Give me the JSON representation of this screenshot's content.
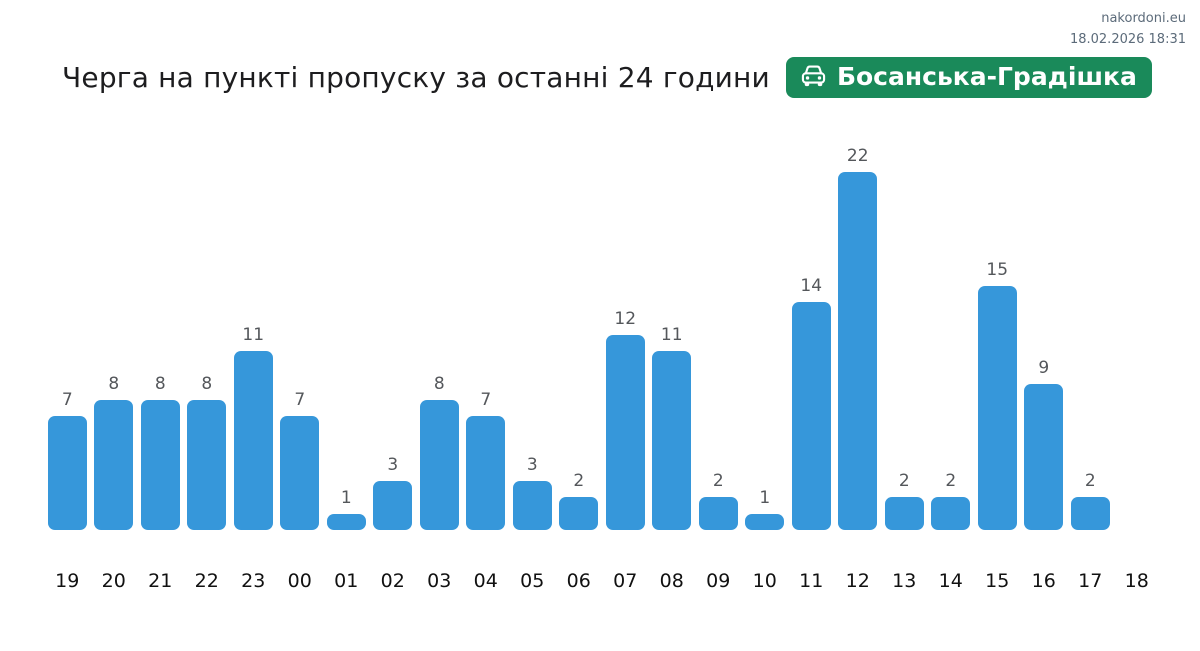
{
  "header": {
    "site": "nakordoni.eu",
    "timestamp": "18.02.2026 18:31"
  },
  "title": {
    "text": "Черга на пункті пропуску за останні 24 години"
  },
  "badge": {
    "label": "Босанська-Градішка",
    "icon": "car-front-icon",
    "bg_color": "#1a8a5a",
    "text_color": "#ffffff"
  },
  "chart_data": {
    "type": "bar",
    "title": "Черга на пункті пропуску за останні 24 години",
    "categories": [
      "19",
      "20",
      "21",
      "22",
      "23",
      "00",
      "01",
      "02",
      "03",
      "04",
      "05",
      "06",
      "07",
      "08",
      "09",
      "10",
      "11",
      "12",
      "13",
      "14",
      "15",
      "16",
      "17",
      "18"
    ],
    "values": [
      7,
      8,
      8,
      8,
      11,
      7,
      1,
      3,
      8,
      7,
      3,
      2,
      12,
      11,
      2,
      1,
      14,
      22,
      2,
      2,
      15,
      9,
      2,
      null
    ],
    "xlabel": "",
    "ylabel": "",
    "ylim": [
      0,
      22
    ],
    "grid": false,
    "legend": false,
    "value_labels_shown": true,
    "bar_color": "#3697da",
    "value_label_color": "#54575b",
    "tick_label_color": "#111111"
  }
}
